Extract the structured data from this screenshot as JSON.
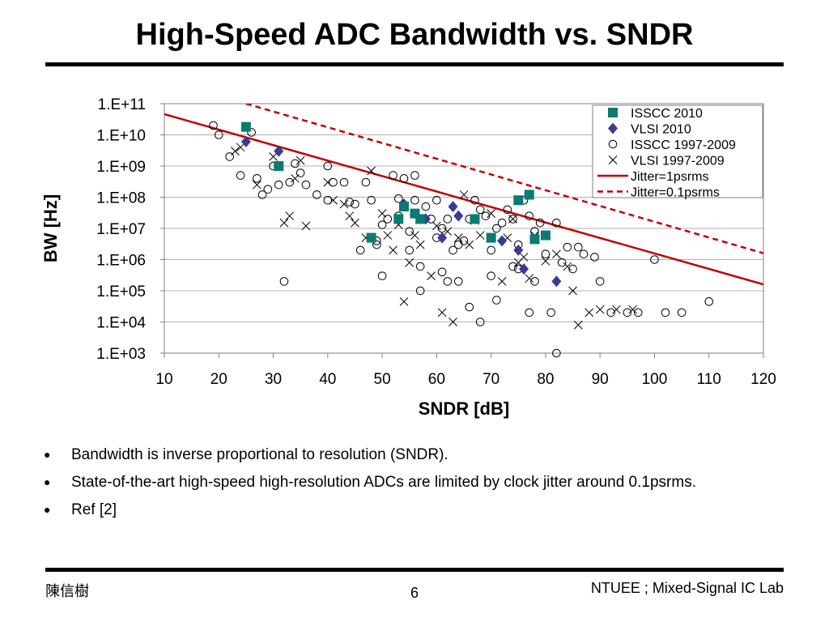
{
  "slide": {
    "title": "High-Speed ADC Bandwidth vs. SNDR",
    "bullets": [
      "Bandwidth is inverse proportional to resolution (SNDR).",
      "State-of-the-art high-speed high-resolution ADCs are limited by clock jitter around 0.1psrms.",
      "Ref [2]"
    ],
    "footer_left": "陳信樹",
    "page_number": "6",
    "footer_right": "NTUEE ; Mixed-Signal IC Lab"
  },
  "chart_data": {
    "type": "scatter",
    "title": "",
    "xlabel": "SNDR [dB]",
    "ylabel": "BW [Hz]",
    "xlim": [
      10,
      120
    ],
    "xticks": [
      10,
      20,
      30,
      40,
      50,
      60,
      70,
      80,
      90,
      100,
      110,
      120
    ],
    "ylim_log10": [
      3,
      11
    ],
    "ytick_labels": [
      "1.E+03",
      "1.E+04",
      "1.E+05",
      "1.E+06",
      "1.E+07",
      "1.E+08",
      "1.E+09",
      "1.E+10",
      "1.E+11"
    ],
    "y_scale": "log",
    "grid": "horizontal",
    "legend_position": "top-right",
    "series": [
      {
        "name": "ISSCC 2010",
        "marker": "square",
        "color": "#0a7a73",
        "points": [
          [
            25,
            18000000000.0
          ],
          [
            31,
            1000000000.0
          ],
          [
            48,
            5000000.0
          ],
          [
            53,
            20000000.0
          ],
          [
            54,
            50000000.0
          ],
          [
            56,
            30000000.0
          ],
          [
            57,
            20000000.0
          ],
          [
            67,
            20000000.0
          ],
          [
            70,
            5000000.0
          ],
          [
            75,
            80000000.0
          ],
          [
            77,
            120000000.0
          ],
          [
            78,
            4500000.0
          ],
          [
            80,
            6000000.0
          ]
        ]
      },
      {
        "name": "VLSI 2010",
        "marker": "diamond",
        "color": "#3a3a9a",
        "points": [
          [
            25,
            6000000000.0
          ],
          [
            31,
            3000000000.0
          ],
          [
            54,
            60000000.0
          ],
          [
            58,
            20000000.0
          ],
          [
            61,
            5000000.0
          ],
          [
            63,
            50000000.0
          ],
          [
            64,
            25000000.0
          ],
          [
            72,
            4000000.0
          ],
          [
            75,
            2000000.0
          ],
          [
            76,
            500000.0
          ],
          [
            82,
            200000.0
          ]
        ]
      },
      {
        "name": "ISSCC 1997-2009",
        "marker": "circle",
        "color": "#000000",
        "points": [
          [
            19,
            20000000000.0
          ],
          [
            20,
            10000000000.0
          ],
          [
            22,
            2000000000.0
          ],
          [
            24,
            500000000.0
          ],
          [
            26,
            12000000000.0
          ],
          [
            27,
            400000000.0
          ],
          [
            28,
            120000000.0
          ],
          [
            29,
            180000000.0
          ],
          [
            30,
            1000000000.0
          ],
          [
            31,
            250000000.0
          ],
          [
            32,
            200000.0
          ],
          [
            33,
            300000000.0
          ],
          [
            34,
            1200000000.0
          ],
          [
            35,
            600000000.0
          ],
          [
            36,
            250000000.0
          ],
          [
            38,
            120000000.0
          ],
          [
            40,
            1000000000.0
          ],
          [
            40,
            80000000.0
          ],
          [
            41,
            300000000.0
          ],
          [
            43,
            300000000.0
          ],
          [
            44,
            70000000.0
          ],
          [
            45,
            60000000.0
          ],
          [
            46,
            2000000.0
          ],
          [
            47,
            300000000.0
          ],
          [
            48,
            80000000.0
          ],
          [
            49,
            3000000.0
          ],
          [
            49,
            4000000.0
          ],
          [
            50,
            13000000.0
          ],
          [
            50,
            300000.0
          ],
          [
            51,
            20000000.0
          ],
          [
            52,
            500000000.0
          ],
          [
            53,
            90000000.0
          ],
          [
            53,
            25000000.0
          ],
          [
            54,
            400000000.0
          ],
          [
            55,
            8000000.0
          ],
          [
            55,
            2000000.0
          ],
          [
            56,
            500000000.0
          ],
          [
            56,
            80000000.0
          ],
          [
            57,
            100000.0
          ],
          [
            57,
            600000.0
          ],
          [
            58,
            50000000.0
          ],
          [
            59,
            20000000.0
          ],
          [
            60,
            80000000.0
          ],
          [
            60,
            5000000.0
          ],
          [
            61,
            400000.0
          ],
          [
            61,
            10000000.0
          ],
          [
            62,
            200000.0
          ],
          [
            62,
            20000000.0
          ],
          [
            63,
            2000000.0
          ],
          [
            64,
            3000000.0
          ],
          [
            64,
            200000.0
          ],
          [
            65,
            4000000.0
          ],
          [
            66,
            30000.0
          ],
          [
            66,
            20000000.0
          ],
          [
            67,
            80000000.0
          ],
          [
            68,
            10000.0
          ],
          [
            68,
            40000000.0
          ],
          [
            69,
            25000000.0
          ],
          [
            70,
            2000000.0
          ],
          [
            70,
            300000.0
          ],
          [
            71,
            10000000.0
          ],
          [
            71,
            50000.0
          ],
          [
            72,
            15000000.0
          ],
          [
            73,
            40000000.0
          ],
          [
            74,
            20000000.0
          ],
          [
            74,
            600000.0
          ],
          [
            75,
            3000000.0
          ],
          [
            75,
            500000.0
          ],
          [
            76,
            80000000.0
          ],
          [
            77,
            25000000.0
          ],
          [
            77,
            20000.0
          ],
          [
            78,
            8000000.0
          ],
          [
            78,
            200000.0
          ],
          [
            79,
            15000000.0
          ],
          [
            80,
            1500000.0
          ],
          [
            81,
            20000.0
          ],
          [
            82,
            15000000.0
          ],
          [
            82,
            1000.0
          ],
          [
            83,
            800000.0
          ],
          [
            84,
            2500000.0
          ],
          [
            85,
            500000.0
          ],
          [
            86,
            2500000.0
          ],
          [
            87,
            1500000.0
          ],
          [
            89,
            1200000.0
          ],
          [
            90,
            200000.0
          ],
          [
            92,
            20000.0
          ],
          [
            95,
            20000.0
          ],
          [
            97,
            20000.0
          ],
          [
            100,
            1000000.0
          ],
          [
            102,
            20000.0
          ],
          [
            105,
            20000.0
          ],
          [
            110,
            45000.0
          ]
        ]
      },
      {
        "name": "VLSI 1997-2009",
        "marker": "x",
        "color": "#000000",
        "points": [
          [
            23,
            3000000000.0
          ],
          [
            24,
            4000000000.0
          ],
          [
            27,
            250000000.0
          ],
          [
            30,
            2000000000.0
          ],
          [
            32,
            15000000.0
          ],
          [
            33,
            25000000.0
          ],
          [
            34,
            400000000.0
          ],
          [
            35,
            1500000000.0
          ],
          [
            36,
            12000000.0
          ],
          [
            40,
            300000000.0
          ],
          [
            41,
            80000000.0
          ],
          [
            43,
            60000000.0
          ],
          [
            44,
            25000000.0
          ],
          [
            45,
            15000000.0
          ],
          [
            47,
            5000000.0
          ],
          [
            48,
            700000000.0
          ],
          [
            50,
            30000000.0
          ],
          [
            51,
            6000000.0
          ],
          [
            52,
            2000000.0
          ],
          [
            53,
            13000000.0
          ],
          [
            54,
            45000.0
          ],
          [
            55,
            800000.0
          ],
          [
            56,
            6000000.0
          ],
          [
            57,
            3000000.0
          ],
          [
            58,
            20000000.0
          ],
          [
            59,
            300000.0
          ],
          [
            60,
            12000000.0
          ],
          [
            61,
            20000.0
          ],
          [
            62,
            8000000.0
          ],
          [
            63,
            10000.0
          ],
          [
            64,
            5000000.0
          ],
          [
            65,
            120000000.0
          ],
          [
            66,
            3000000.0
          ],
          [
            67,
            18000000.0
          ],
          [
            68,
            6000000.0
          ],
          [
            70,
            30000000.0
          ],
          [
            72,
            200000.0
          ],
          [
            73,
            5000000.0
          ],
          [
            74,
            20000000.0
          ],
          [
            75,
            800000.0
          ],
          [
            76,
            1200000.0
          ],
          [
            77,
            250000.0
          ],
          [
            78,
            6000000.0
          ],
          [
            80,
            900000.0
          ],
          [
            82,
            1500000.0
          ],
          [
            84,
            600000.0
          ],
          [
            85,
            100000.0
          ],
          [
            86,
            8000.0
          ],
          [
            88,
            20000.0
          ],
          [
            90,
            25000.0
          ],
          [
            93,
            25000.0
          ],
          [
            96,
            25000.0
          ]
        ]
      },
      {
        "name": "Jitter=1psrms",
        "marker": "line",
        "style": "solid",
        "color": "#c00000",
        "points": [
          [
            10,
            46000000000.0
          ],
          [
            120,
            160000.0
          ]
        ]
      },
      {
        "name": "Jitter=0.1psrms",
        "marker": "line",
        "style": "dashed",
        "color": "#c00000",
        "points": [
          [
            25,
            100000000000.0
          ],
          [
            120,
            1600000.0
          ]
        ]
      }
    ]
  }
}
